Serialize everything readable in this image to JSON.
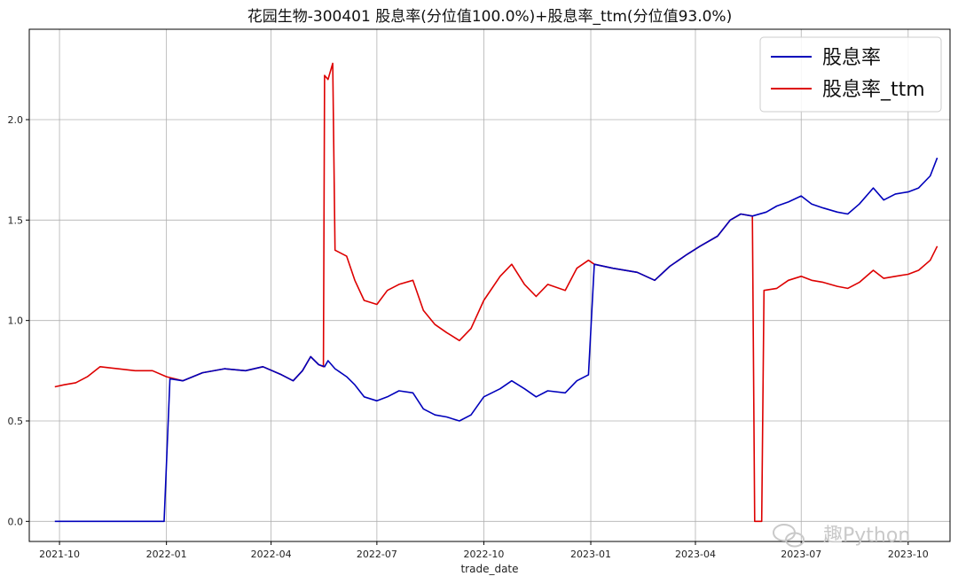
{
  "chart_data": {
    "type": "line",
    "title": "花园生物-300401 股息率(分位值100.0%)+股息率_ttm(分位值93.0%)",
    "xlabel": "trade_date",
    "ylabel": "",
    "x_range": [
      "2021-09-05",
      "2023-11-06"
    ],
    "ylim": [
      -0.1,
      2.45
    ],
    "x_ticks": [
      {
        "date": "2021-10-01",
        "label": "2021-10"
      },
      {
        "date": "2022-01-01",
        "label": "2022-01"
      },
      {
        "date": "2022-04-01",
        "label": "2022-04"
      },
      {
        "date": "2022-07-01",
        "label": "2022-07"
      },
      {
        "date": "2022-10-01",
        "label": "2022-10"
      },
      {
        "date": "2023-01-01",
        "label": "2023-01"
      },
      {
        "date": "2023-04-01",
        "label": "2023-04"
      },
      {
        "date": "2023-07-01",
        "label": "2023-07"
      },
      {
        "date": "2023-10-01",
        "label": "2023-10"
      }
    ],
    "y_ticks": [
      {
        "value": 0.0,
        "label": "0.0"
      },
      {
        "value": 0.5,
        "label": "0.5"
      },
      {
        "value": 1.0,
        "label": "1.0"
      },
      {
        "value": 1.5,
        "label": "1.5"
      },
      {
        "value": 2.0,
        "label": "2.0"
      }
    ],
    "grid": true,
    "legend_position": "top-right",
    "series": [
      {
        "name": "股息率",
        "color": "#0000bb",
        "points": [
          [
            "2021-09-27",
            0.0
          ],
          [
            "2021-12-30",
            0.0
          ],
          [
            "2022-01-04",
            0.71
          ],
          [
            "2022-01-15",
            0.7
          ],
          [
            "2022-02-01",
            0.74
          ],
          [
            "2022-02-20",
            0.76
          ],
          [
            "2022-03-10",
            0.75
          ],
          [
            "2022-03-25",
            0.77
          ],
          [
            "2022-04-10",
            0.73
          ],
          [
            "2022-04-20",
            0.7
          ],
          [
            "2022-04-28",
            0.75
          ],
          [
            "2022-05-05",
            0.82
          ],
          [
            "2022-05-12",
            0.78
          ],
          [
            "2022-05-17",
            0.77
          ],
          [
            "2022-05-20",
            0.8
          ],
          [
            "2022-05-26",
            0.76
          ],
          [
            "2022-06-05",
            0.72
          ],
          [
            "2022-06-12",
            0.68
          ],
          [
            "2022-06-20",
            0.62
          ],
          [
            "2022-07-01",
            0.6
          ],
          [
            "2022-07-10",
            0.62
          ],
          [
            "2022-07-20",
            0.65
          ],
          [
            "2022-08-01",
            0.64
          ],
          [
            "2022-08-10",
            0.56
          ],
          [
            "2022-08-20",
            0.53
          ],
          [
            "2022-08-30",
            0.52
          ],
          [
            "2022-09-10",
            0.5
          ],
          [
            "2022-09-20",
            0.53
          ],
          [
            "2022-10-01",
            0.62
          ],
          [
            "2022-10-15",
            0.66
          ],
          [
            "2022-10-25",
            0.7
          ],
          [
            "2022-11-05",
            0.66
          ],
          [
            "2022-11-15",
            0.62
          ],
          [
            "2022-11-25",
            0.65
          ],
          [
            "2022-12-10",
            0.64
          ],
          [
            "2022-12-20",
            0.7
          ],
          [
            "2022-12-30",
            0.73
          ],
          [
            "2023-01-04",
            1.28
          ],
          [
            "2023-01-20",
            1.26
          ],
          [
            "2023-02-10",
            1.24
          ],
          [
            "2023-02-25",
            1.2
          ],
          [
            "2023-03-10",
            1.27
          ],
          [
            "2023-03-25",
            1.33
          ],
          [
            "2023-04-05",
            1.37
          ],
          [
            "2023-04-20",
            1.42
          ],
          [
            "2023-05-01",
            1.5
          ],
          [
            "2023-05-10",
            1.53
          ],
          [
            "2023-05-20",
            1.52
          ],
          [
            "2023-06-01",
            1.54
          ],
          [
            "2023-06-10",
            1.57
          ],
          [
            "2023-06-20",
            1.59
          ],
          [
            "2023-07-01",
            1.62
          ],
          [
            "2023-07-10",
            1.58
          ],
          [
            "2023-07-20",
            1.56
          ],
          [
            "2023-08-01",
            1.54
          ],
          [
            "2023-08-10",
            1.53
          ],
          [
            "2023-08-20",
            1.58
          ],
          [
            "2023-09-01",
            1.66
          ],
          [
            "2023-09-10",
            1.6
          ],
          [
            "2023-09-20",
            1.63
          ],
          [
            "2023-10-01",
            1.64
          ],
          [
            "2023-10-10",
            1.66
          ],
          [
            "2023-10-20",
            1.72
          ],
          [
            "2023-10-26",
            1.81
          ]
        ]
      },
      {
        "name": "股息率_ttm",
        "color": "#dd0000",
        "points": [
          [
            "2021-09-27",
            0.67
          ],
          [
            "2021-10-05",
            0.68
          ],
          [
            "2021-10-15",
            0.69
          ],
          [
            "2021-10-25",
            0.72
          ],
          [
            "2021-11-05",
            0.77
          ],
          [
            "2021-11-20",
            0.76
          ],
          [
            "2021-12-05",
            0.75
          ],
          [
            "2021-12-20",
            0.75
          ],
          [
            "2022-01-01",
            0.72
          ],
          [
            "2022-01-15",
            0.7
          ],
          [
            "2022-02-01",
            0.74
          ],
          [
            "2022-02-20",
            0.76
          ],
          [
            "2022-03-10",
            0.75
          ],
          [
            "2022-03-25",
            0.77
          ],
          [
            "2022-04-10",
            0.73
          ],
          [
            "2022-04-20",
            0.7
          ],
          [
            "2022-04-28",
            0.75
          ],
          [
            "2022-05-05",
            0.82
          ],
          [
            "2022-05-12",
            0.78
          ],
          [
            "2022-05-16",
            0.77
          ],
          [
            "2022-05-17",
            2.22
          ],
          [
            "2022-05-20",
            2.2
          ],
          [
            "2022-05-24",
            2.28
          ],
          [
            "2022-05-26",
            1.35
          ],
          [
            "2022-06-05",
            1.32
          ],
          [
            "2022-06-12",
            1.2
          ],
          [
            "2022-06-20",
            1.1
          ],
          [
            "2022-07-01",
            1.08
          ],
          [
            "2022-07-10",
            1.15
          ],
          [
            "2022-07-20",
            1.18
          ],
          [
            "2022-08-01",
            1.2
          ],
          [
            "2022-08-10",
            1.05
          ],
          [
            "2022-08-20",
            0.98
          ],
          [
            "2022-08-30",
            0.94
          ],
          [
            "2022-09-10",
            0.9
          ],
          [
            "2022-09-20",
            0.96
          ],
          [
            "2022-10-01",
            1.1
          ],
          [
            "2022-10-15",
            1.22
          ],
          [
            "2022-10-25",
            1.28
          ],
          [
            "2022-11-05",
            1.18
          ],
          [
            "2022-11-15",
            1.12
          ],
          [
            "2022-11-25",
            1.18
          ],
          [
            "2022-12-10",
            1.15
          ],
          [
            "2022-12-20",
            1.26
          ],
          [
            "2022-12-30",
            1.3
          ],
          [
            "2023-01-04",
            1.28
          ],
          [
            "2023-01-20",
            1.26
          ],
          [
            "2023-02-10",
            1.24
          ],
          [
            "2023-02-25",
            1.2
          ],
          [
            "2023-03-10",
            1.27
          ],
          [
            "2023-03-25",
            1.33
          ],
          [
            "2023-04-05",
            1.37
          ],
          [
            "2023-04-20",
            1.42
          ],
          [
            "2023-05-01",
            1.5
          ],
          [
            "2023-05-10",
            1.53
          ],
          [
            "2023-05-20",
            1.52
          ],
          [
            "2023-05-22",
            0.0
          ],
          [
            "2023-05-28",
            0.0
          ],
          [
            "2023-05-30",
            1.15
          ],
          [
            "2023-06-10",
            1.16
          ],
          [
            "2023-06-20",
            1.2
          ],
          [
            "2023-07-01",
            1.22
          ],
          [
            "2023-07-10",
            1.2
          ],
          [
            "2023-07-20",
            1.19
          ],
          [
            "2023-08-01",
            1.17
          ],
          [
            "2023-08-10",
            1.16
          ],
          [
            "2023-08-20",
            1.19
          ],
          [
            "2023-09-01",
            1.25
          ],
          [
            "2023-09-10",
            1.21
          ],
          [
            "2023-09-20",
            1.22
          ],
          [
            "2023-10-01",
            1.23
          ],
          [
            "2023-10-10",
            1.25
          ],
          [
            "2023-10-20",
            1.3
          ],
          [
            "2023-10-26",
            1.37
          ]
        ]
      }
    ]
  },
  "watermark": {
    "text": "趣Python"
  }
}
